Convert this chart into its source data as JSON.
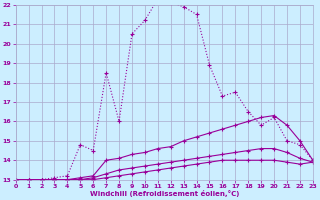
{
  "bg_color": "#cceeff",
  "grid_color": "#aaaacc",
  "line_color": "#990099",
  "xlabel": "Windchill (Refroidissement éolien,°C)",
  "xlim": [
    0,
    23
  ],
  "ylim": [
    13,
    22
  ],
  "xticks": [
    0,
    1,
    2,
    3,
    4,
    5,
    6,
    7,
    8,
    9,
    10,
    11,
    12,
    13,
    14,
    15,
    16,
    17,
    18,
    19,
    20,
    21,
    22,
    23
  ],
  "yticks": [
    13,
    14,
    15,
    16,
    17,
    18,
    19,
    20,
    21,
    22
  ],
  "line1_x": [
    0,
    1,
    2,
    3,
    4,
    5,
    6,
    7,
    8,
    9,
    10,
    11,
    12,
    13,
    14,
    15,
    16,
    17,
    18,
    19,
    20,
    21,
    22,
    23
  ],
  "line1_y": [
    13.0,
    13.0,
    13.0,
    13.1,
    13.2,
    14.8,
    14.5,
    18.5,
    16.0,
    20.5,
    21.2,
    22.3,
    22.1,
    21.9,
    21.5,
    18.9,
    17.3,
    17.5,
    16.5,
    15.8,
    16.2,
    15.0,
    14.8,
    14.0
  ],
  "line2_x": [
    0,
    1,
    2,
    3,
    4,
    5,
    6,
    7,
    8,
    9,
    10,
    11,
    12,
    13,
    14,
    15,
    16,
    17,
    18,
    19,
    20,
    21,
    22,
    23
  ],
  "line2_y": [
    13.0,
    13.0,
    13.0,
    13.0,
    13.0,
    13.1,
    13.2,
    14.0,
    14.1,
    14.3,
    14.4,
    14.6,
    14.7,
    15.0,
    15.2,
    15.4,
    15.6,
    15.8,
    16.0,
    16.2,
    16.3,
    15.8,
    15.0,
    14.0
  ],
  "line3_x": [
    0,
    1,
    2,
    3,
    4,
    5,
    6,
    7,
    8,
    9,
    10,
    11,
    12,
    13,
    14,
    15,
    16,
    17,
    18,
    19,
    20,
    21,
    22,
    23
  ],
  "line3_y": [
    13.0,
    13.0,
    13.0,
    13.0,
    13.0,
    13.0,
    13.1,
    13.3,
    13.5,
    13.6,
    13.7,
    13.8,
    13.9,
    14.0,
    14.1,
    14.2,
    14.3,
    14.4,
    14.5,
    14.6,
    14.6,
    14.4,
    14.1,
    13.9
  ],
  "line4_x": [
    0,
    1,
    2,
    3,
    4,
    5,
    6,
    7,
    8,
    9,
    10,
    11,
    12,
    13,
    14,
    15,
    16,
    17,
    18,
    19,
    20,
    21,
    22,
    23
  ],
  "line4_y": [
    13.0,
    13.0,
    13.0,
    13.0,
    13.0,
    13.0,
    13.0,
    13.1,
    13.2,
    13.3,
    13.4,
    13.5,
    13.6,
    13.7,
    13.8,
    13.9,
    14.0,
    14.0,
    14.0,
    14.0,
    14.0,
    13.9,
    13.8,
    13.9
  ]
}
